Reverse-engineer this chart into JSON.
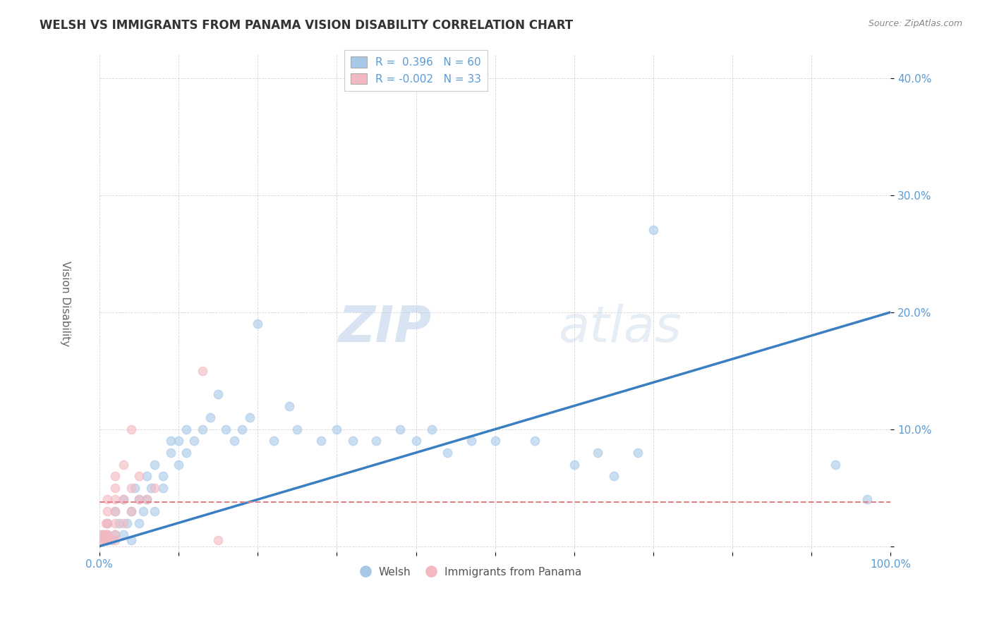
{
  "title": "WELSH VS IMMIGRANTS FROM PANAMA VISION DISABILITY CORRELATION CHART",
  "source": "Source: ZipAtlas.com",
  "ylabel": "Vision Disability",
  "xlabel": "",
  "xlim": [
    0.0,
    1.0
  ],
  "ylim": [
    -0.005,
    0.42
  ],
  "xticks": [
    0.0,
    0.1,
    0.2,
    0.3,
    0.4,
    0.5,
    0.6,
    0.7,
    0.8,
    0.9,
    1.0
  ],
  "xticklabels": [
    "0.0%",
    "",
    "",
    "",
    "",
    "",
    "",
    "",
    "",
    "",
    "100.0%"
  ],
  "yticks": [
    0.0,
    0.1,
    0.2,
    0.3,
    0.4
  ],
  "yticklabels": [
    "",
    "10.0%",
    "20.0%",
    "30.0%",
    "40.0%"
  ],
  "welsh_color": "#a8c8e8",
  "panama_color": "#f4b8c0",
  "trendline_welsh_color": "#3a7fc1",
  "trendline_panama_color": "#e8808a",
  "background_color": "#ffffff",
  "grid_color": "#cccccc",
  "title_color": "#333333",
  "axis_color": "#5b9bd5",
  "legend_R_welsh": "R =  0.396",
  "legend_N_welsh": "N = 60",
  "legend_R_panama": "R = -0.002",
  "legend_N_panama": "N = 33",
  "welsh_x": [
    0.005,
    0.008,
    0.01,
    0.01,
    0.015,
    0.02,
    0.02,
    0.025,
    0.03,
    0.03,
    0.035,
    0.04,
    0.04,
    0.045,
    0.05,
    0.05,
    0.055,
    0.06,
    0.06,
    0.065,
    0.07,
    0.07,
    0.08,
    0.08,
    0.09,
    0.09,
    0.1,
    0.1,
    0.11,
    0.11,
    0.12,
    0.13,
    0.14,
    0.15,
    0.16,
    0.17,
    0.18,
    0.19,
    0.2,
    0.22,
    0.24,
    0.25,
    0.28,
    0.3,
    0.32,
    0.35,
    0.38,
    0.4,
    0.42,
    0.44,
    0.47,
    0.5,
    0.55,
    0.6,
    0.63,
    0.65,
    0.68,
    0.7,
    0.93,
    0.97
  ],
  "welsh_y": [
    0.01,
    0.005,
    0.02,
    0.01,
    0.005,
    0.03,
    0.01,
    0.02,
    0.01,
    0.04,
    0.02,
    0.03,
    0.005,
    0.05,
    0.04,
    0.02,
    0.03,
    0.06,
    0.04,
    0.05,
    0.07,
    0.03,
    0.05,
    0.06,
    0.08,
    0.09,
    0.09,
    0.07,
    0.1,
    0.08,
    0.09,
    0.1,
    0.11,
    0.13,
    0.1,
    0.09,
    0.1,
    0.11,
    0.19,
    0.09,
    0.12,
    0.1,
    0.09,
    0.1,
    0.09,
    0.09,
    0.1,
    0.09,
    0.1,
    0.08,
    0.09,
    0.09,
    0.09,
    0.07,
    0.08,
    0.06,
    0.08,
    0.27,
    0.07,
    0.04
  ],
  "panama_x": [
    0.002,
    0.003,
    0.005,
    0.005,
    0.007,
    0.008,
    0.008,
    0.01,
    0.01,
    0.01,
    0.01,
    0.01,
    0.01,
    0.01,
    0.02,
    0.02,
    0.02,
    0.02,
    0.02,
    0.02,
    0.02,
    0.03,
    0.03,
    0.03,
    0.04,
    0.04,
    0.04,
    0.05,
    0.05,
    0.06,
    0.07,
    0.13,
    0.15
  ],
  "panama_y": [
    0.005,
    0.01,
    0.005,
    0.01,
    0.005,
    0.01,
    0.02,
    0.005,
    0.01,
    0.02,
    0.03,
    0.04,
    0.005,
    0.005,
    0.005,
    0.01,
    0.02,
    0.03,
    0.04,
    0.05,
    0.06,
    0.02,
    0.04,
    0.07,
    0.03,
    0.05,
    0.1,
    0.04,
    0.06,
    0.04,
    0.05,
    0.15,
    0.005
  ],
  "watermark_zip": "ZIP",
  "watermark_atlas": "atlas",
  "legend_title_welsh": "Welsh",
  "legend_title_panama": "Immigrants from Panama"
}
